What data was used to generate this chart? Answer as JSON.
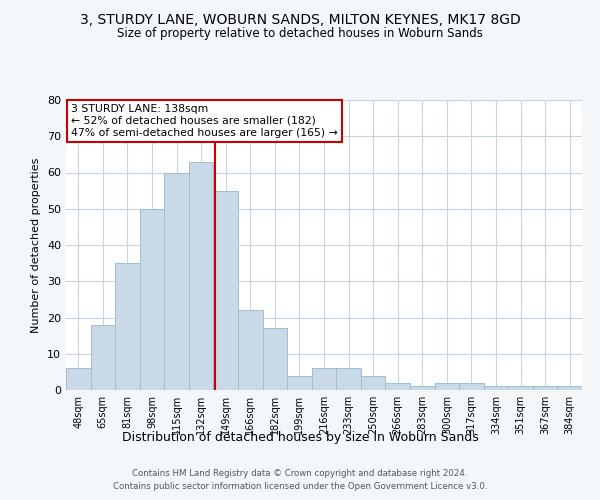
{
  "title": "3, STURDY LANE, WOBURN SANDS, MILTON KEYNES, MK17 8GD",
  "subtitle": "Size of property relative to detached houses in Woburn Sands",
  "xlabel": "Distribution of detached houses by size in Woburn Sands",
  "ylabel": "Number of detached properties",
  "footer_line1": "Contains HM Land Registry data © Crown copyright and database right 2024.",
  "footer_line2": "Contains public sector information licensed under the Open Government Licence v3.0.",
  "categories": [
    "48sqm",
    "65sqm",
    "81sqm",
    "98sqm",
    "115sqm",
    "132sqm",
    "149sqm",
    "166sqm",
    "182sqm",
    "199sqm",
    "216sqm",
    "233sqm",
    "250sqm",
    "266sqm",
    "283sqm",
    "300sqm",
    "317sqm",
    "334sqm",
    "351sqm",
    "367sqm",
    "384sqm"
  ],
  "values": [
    6,
    18,
    35,
    50,
    60,
    63,
    55,
    22,
    17,
    4,
    6,
    6,
    4,
    2,
    1,
    2,
    2,
    1,
    1,
    1,
    1
  ],
  "bar_color": "#c9d9e8",
  "bar_edge_color": "#a0bdd4",
  "property_label": "3 STURDY LANE: 138sqm",
  "annotation_line1": "← 52% of detached houses are smaller (182)",
  "annotation_line2": "47% of semi-detached houses are larger (165) →",
  "vline_color": "#cc0000",
  "vline_x_index": 5.55,
  "annotation_box_color": "#ffffff",
  "annotation_box_edge_color": "#cc0000",
  "ylim": [
    0,
    80
  ],
  "yticks": [
    0,
    10,
    20,
    30,
    40,
    50,
    60,
    70,
    80
  ],
  "bg_color": "#f4f7fa",
  "plot_bg_color": "#ffffff",
  "grid_color": "#c8d4e0",
  "title_fontsize": 10,
  "subtitle_fontsize": 9
}
